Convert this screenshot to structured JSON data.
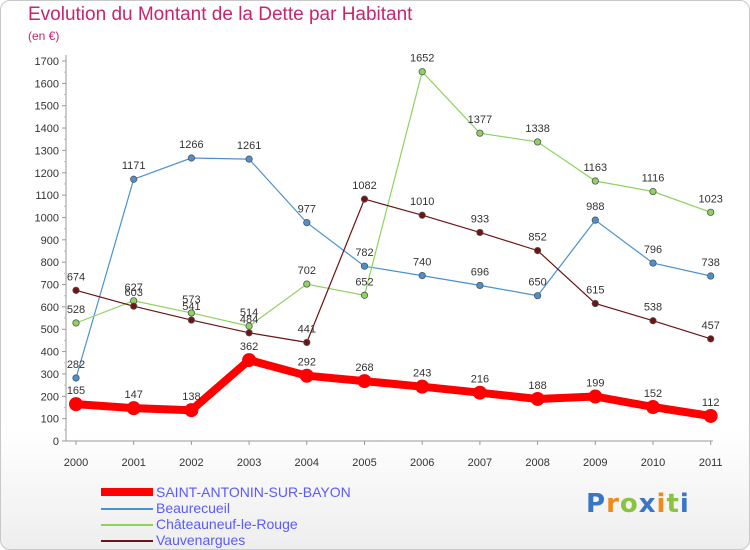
{
  "title": "Evolution du Montant de la Dette par Habitant",
  "subtitle": "(en €)",
  "logo": {
    "letters": [
      {
        "char": "P",
        "color": "#3a76c8"
      },
      {
        "char": "r",
        "color": "#f08a1c"
      },
      {
        "char": "o",
        "color": "#8ac43f"
      },
      {
        "char": "x",
        "color": "#3a76c8"
      },
      {
        "char": "i",
        "color": "#f08a1c"
      },
      {
        "char": "t",
        "color": "#8ac43f"
      },
      {
        "char": "i",
        "color": "#3a76c8"
      }
    ]
  },
  "chart_data": {
    "type": "line",
    "title": "Evolution du Montant de la Dette par Habitant",
    "subtitle": "(en €)",
    "x": [
      "2000",
      "2001",
      "2002",
      "2003",
      "2004",
      "2005",
      "2006",
      "2007",
      "2008",
      "2009",
      "2010",
      "2011"
    ],
    "ylim": [
      0,
      1700
    ],
    "yticks": [
      0,
      100,
      200,
      300,
      400,
      500,
      600,
      700,
      800,
      900,
      1000,
      1100,
      1200,
      1300,
      1400,
      1500,
      1600,
      1700
    ],
    "grid": false,
    "legend": "bottom-left",
    "series": [
      {
        "name": "SAINT-ANTONIN-SUR-BAYON",
        "color": "#ff0000",
        "thick": true,
        "values": [
          165,
          147,
          138,
          362,
          292,
          268,
          243,
          216,
          188,
          199,
          152,
          112
        ],
        "labels": [
          "165",
          "147",
          "138",
          "362",
          "292",
          "268",
          "243",
          "216",
          "188",
          "199",
          "152",
          "112"
        ]
      },
      {
        "name": "Beaurecueil",
        "color": "#4b91d2",
        "values": [
          282,
          1171,
          1266,
          1261,
          977,
          782,
          740,
          696,
          650,
          988,
          796,
          738
        ],
        "labels": [
          "282",
          "1171",
          "1266",
          "1261",
          "977",
          "782",
          "740",
          "696",
          "650",
          "988",
          "796",
          "738"
        ]
      },
      {
        "name": "Châteauneuf-le-Rouge",
        "color": "#8dd35f",
        "values": [
          528,
          627,
          573,
          514,
          702,
          652,
          1652,
          1377,
          1338,
          1163,
          1116,
          1023
        ],
        "labels": [
          "528",
          "627",
          "573",
          "514",
          "702",
          "652",
          "1652",
          "1377",
          "1338",
          "1163",
          "1116",
          "1023"
        ]
      },
      {
        "name": "Vauvenargues",
        "color": "#6e1414",
        "values": [
          674,
          603,
          541,
          484,
          441,
          1082,
          1010,
          933,
          852,
          615,
          538,
          457
        ],
        "labels": [
          "674",
          "603",
          "541",
          "484",
          "441",
          "1082",
          "1010",
          "933",
          "852",
          "615",
          "538",
          "457"
        ]
      }
    ]
  }
}
